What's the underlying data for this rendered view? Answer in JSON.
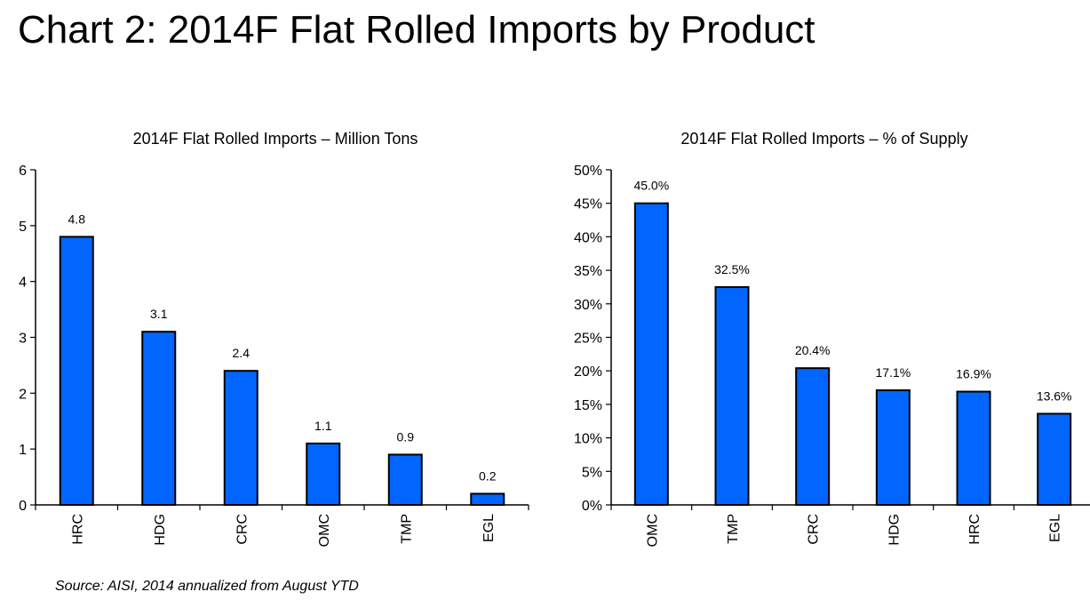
{
  "page_title": "Chart 2: 2014F Flat Rolled Imports by Product",
  "source_note": "Source: AISI, 2014 annualized from August YTD",
  "colors": {
    "bar_fill": "#0066FF",
    "bar_stroke": "#000000",
    "axis": "#000000"
  },
  "chart_data": [
    {
      "type": "bar",
      "title": "2014F Flat Rolled Imports – Million Tons",
      "categories": [
        "HRC",
        "HDG",
        "CRC",
        "OMC",
        "TMP",
        "EGL"
      ],
      "values": [
        4.8,
        3.1,
        2.4,
        1.1,
        0.9,
        0.2
      ],
      "data_labels": [
        "4.8",
        "3.1",
        "2.4",
        "1.1",
        "0.9",
        "0.2"
      ],
      "ylim": [
        0,
        6
      ],
      "yticks": [
        0,
        1,
        2,
        3,
        4,
        5,
        6
      ],
      "ytick_labels": [
        "0",
        "1",
        "2",
        "3",
        "4",
        "5",
        "6"
      ],
      "grid": false
    },
    {
      "type": "bar",
      "title": "2014F Flat Rolled Imports – % of Supply",
      "categories": [
        "OMC",
        "TMP",
        "CRC",
        "HDG",
        "HRC",
        "EGL"
      ],
      "values": [
        45.0,
        32.5,
        20.4,
        17.1,
        16.9,
        13.6
      ],
      "data_labels": [
        "45.0%",
        "32.5%",
        "20.4%",
        "17.1%",
        "16.9%",
        "13.6%"
      ],
      "ylim": [
        0,
        50
      ],
      "yticks": [
        0,
        5,
        10,
        15,
        20,
        25,
        30,
        35,
        40,
        45,
        50
      ],
      "ytick_labels": [
        "0%",
        "5%",
        "10%",
        "15%",
        "20%",
        "25%",
        "30%",
        "35%",
        "40%",
        "45%",
        "50%"
      ],
      "grid": false
    }
  ]
}
